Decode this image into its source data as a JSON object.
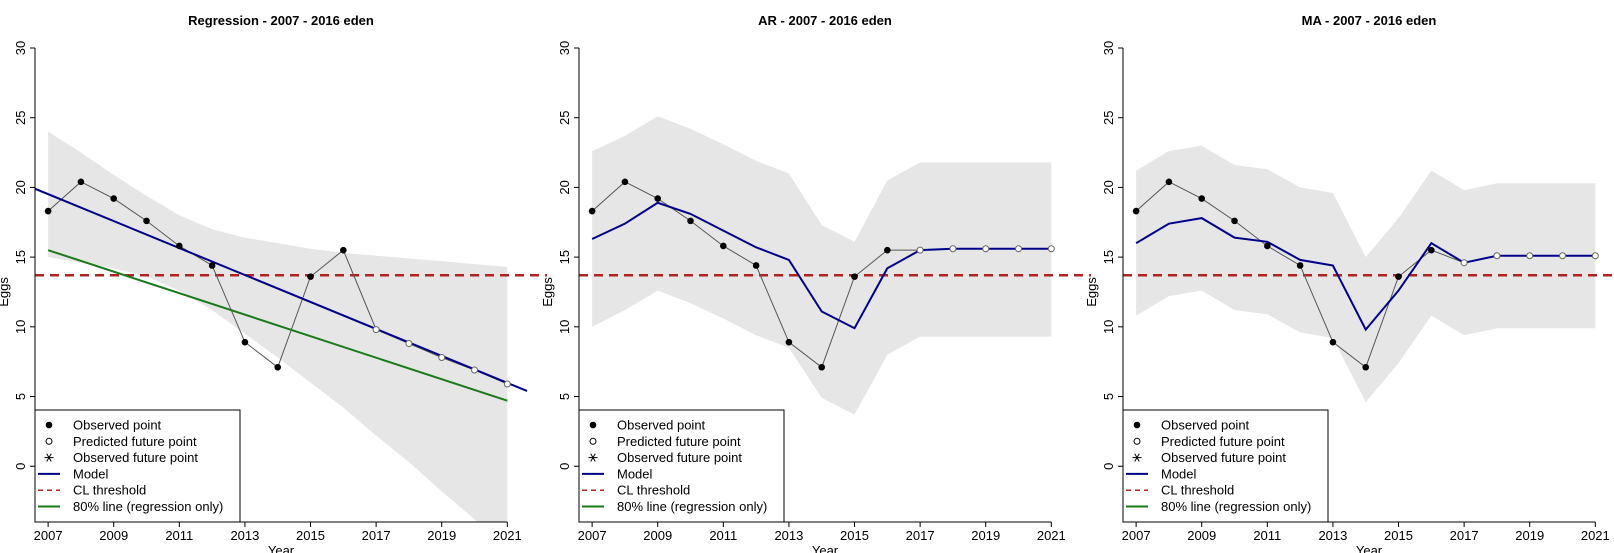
{
  "chart_data": [
    {
      "type": "line",
      "title": "Regression - 2007 - 2016 eden",
      "xlabel": "Year",
      "ylabel": "Eggs",
      "xlim": [
        2006.6,
        2021.6
      ],
      "ylim": [
        -4,
        30
      ],
      "xticks": [
        2007,
        2009,
        2011,
        2013,
        2015,
        2017,
        2019,
        2021
      ],
      "yticks": [
        0,
        5,
        10,
        15,
        20,
        25,
        30
      ],
      "threshold": 13.7,
      "observed": {
        "x": [
          2007,
          2008,
          2009,
          2010,
          2011,
          2012,
          2013,
          2014,
          2015,
          2016
        ],
        "y": [
          18.3,
          20.4,
          19.2,
          17.6,
          15.8,
          14.4,
          8.9,
          7.1,
          13.6,
          15.5
        ]
      },
      "predicted": {
        "x": [
          2017,
          2018,
          2019,
          2020,
          2021
        ],
        "y": [
          9.8,
          8.8,
          7.8,
          6.9,
          5.9
        ]
      },
      "model": {
        "x": [
          2006.5,
          2021.6
        ],
        "y": [
          20.0,
          5.4
        ]
      },
      "line80": {
        "x": [
          2007,
          2021
        ],
        "y": [
          15.5,
          4.7
        ]
      },
      "band_upper": {
        "x": [
          2007,
          2008,
          2009,
          2010,
          2011,
          2012,
          2013,
          2014,
          2015,
          2016,
          2017,
          2018,
          2019,
          2020,
          2021
        ],
        "y": [
          24.0,
          22.5,
          20.9,
          19.4,
          18.0,
          17.0,
          16.4,
          16.0,
          15.6,
          15.3,
          15.1,
          14.9,
          14.7,
          14.5,
          14.3
        ]
      },
      "band_lower": {
        "x": [
          2007,
          2008,
          2009,
          2010,
          2011,
          2012,
          2013,
          2014,
          2015,
          2016,
          2017,
          2018,
          2019,
          2020,
          2021
        ],
        "y": [
          15.0,
          14.6,
          14.2,
          13.6,
          12.6,
          11.2,
          9.5,
          7.8,
          6.0,
          4.2,
          2.2,
          0.3,
          -1.8,
          -3.8,
          -5.7
        ]
      },
      "legend": {
        "position": "bottom-left",
        "entries": [
          "Observed point",
          "Predicted future point",
          "Observed future point",
          "Model",
          "CL threshold",
          "80% line (regression only)"
        ]
      }
    },
    {
      "type": "line",
      "title": "AR - 2007 - 2016 eden",
      "xlabel": "Year",
      "ylabel": "Eggs",
      "xlim": [
        2006.6,
        2021.6
      ],
      "ylim": [
        -4,
        30
      ],
      "xticks": [
        2007,
        2009,
        2011,
        2013,
        2015,
        2017,
        2019,
        2021
      ],
      "yticks": [
        0,
        5,
        10,
        15,
        20,
        25,
        30
      ],
      "threshold": 13.7,
      "observed": {
        "x": [
          2007,
          2008,
          2009,
          2010,
          2011,
          2012,
          2013,
          2014,
          2015,
          2016
        ],
        "y": [
          18.3,
          20.4,
          19.2,
          17.6,
          15.8,
          14.4,
          8.9,
          7.1,
          13.6,
          15.5
        ]
      },
      "predicted": {
        "x": [
          2017,
          2018,
          2019,
          2020,
          2021
        ],
        "y": [
          15.5,
          15.6,
          15.6,
          15.6,
          15.6
        ]
      },
      "model": {
        "x": [
          2007,
          2008,
          2009,
          2010,
          2011,
          2012,
          2013,
          2014,
          2015,
          2016,
          2017,
          2018,
          2019,
          2020,
          2021
        ],
        "y": [
          16.3,
          17.4,
          18.9,
          18.1,
          16.9,
          15.7,
          14.8,
          11.1,
          9.9,
          14.2,
          15.5,
          15.6,
          15.6,
          15.6,
          15.6
        ]
      },
      "band_upper": {
        "x": [
          2007,
          2008,
          2009,
          2010,
          2011,
          2012,
          2013,
          2014,
          2015,
          2016,
          2017,
          2018,
          2019,
          2020,
          2021
        ],
        "y": [
          22.6,
          23.7,
          25.1,
          24.2,
          23.1,
          21.9,
          21.0,
          17.3,
          16.1,
          20.5,
          21.8,
          21.8,
          21.8,
          21.8,
          21.8
        ]
      },
      "band_lower": {
        "x": [
          2007,
          2008,
          2009,
          2010,
          2011,
          2012,
          2013,
          2014,
          2015,
          2016,
          2017,
          2018,
          2019,
          2020,
          2021
        ],
        "y": [
          10.0,
          11.2,
          12.6,
          11.7,
          10.6,
          9.4,
          8.5,
          4.9,
          3.7,
          8.0,
          9.3,
          9.3,
          9.3,
          9.3,
          9.3
        ]
      },
      "legend": {
        "position": "bottom-left",
        "entries": [
          "Observed point",
          "Predicted future point",
          "Observed future point",
          "Model",
          "CL threshold",
          "80% line (regression only)"
        ]
      }
    },
    {
      "type": "line",
      "title": "MA - 2007 - 2016 eden",
      "xlabel": "Year",
      "ylabel": "Eggs",
      "xlim": [
        2006.6,
        2021.6
      ],
      "ylim": [
        -4,
        30
      ],
      "xticks": [
        2007,
        2009,
        2011,
        2013,
        2015,
        2017,
        2019,
        2021
      ],
      "yticks": [
        0,
        5,
        10,
        15,
        20,
        25,
        30
      ],
      "threshold": 13.7,
      "observed": {
        "x": [
          2007,
          2008,
          2009,
          2010,
          2011,
          2012,
          2013,
          2014,
          2015,
          2016
        ],
        "y": [
          18.3,
          20.4,
          19.2,
          17.6,
          15.8,
          14.4,
          8.9,
          7.1,
          13.6,
          15.5
        ]
      },
      "predicted": {
        "x": [
          2017,
          2018,
          2019,
          2020,
          2021
        ],
        "y": [
          14.6,
          15.1,
          15.1,
          15.1,
          15.1
        ]
      },
      "model": {
        "x": [
          2007,
          2008,
          2009,
          2010,
          2011,
          2012,
          2013,
          2014,
          2015,
          2016,
          2017,
          2018,
          2019,
          2020,
          2021
        ],
        "y": [
          16.0,
          17.4,
          17.8,
          16.4,
          16.1,
          14.8,
          14.4,
          9.8,
          12.6,
          16.0,
          14.6,
          15.1,
          15.1,
          15.1,
          15.1
        ]
      },
      "band_upper": {
        "x": [
          2007,
          2008,
          2009,
          2010,
          2011,
          2012,
          2013,
          2014,
          2015,
          2016,
          2017,
          2018,
          2019,
          2020,
          2021
        ],
        "y": [
          21.2,
          22.6,
          23.0,
          21.6,
          21.3,
          20.0,
          19.6,
          15.0,
          17.8,
          21.2,
          19.8,
          20.3,
          20.3,
          20.3,
          20.3
        ]
      },
      "band_lower": {
        "x": [
          2007,
          2008,
          2009,
          2010,
          2011,
          2012,
          2013,
          2014,
          2015,
          2016,
          2017,
          2018,
          2019,
          2020,
          2021
        ],
        "y": [
          10.8,
          12.2,
          12.6,
          11.2,
          10.9,
          9.6,
          9.2,
          4.6,
          7.4,
          10.8,
          9.4,
          9.9,
          9.9,
          9.9,
          9.9
        ]
      },
      "legend": {
        "position": "bottom-left",
        "entries": [
          "Observed point",
          "Predicted future point",
          "Observed future point",
          "Model",
          "CL threshold",
          "80% line (regression only)"
        ]
      }
    }
  ],
  "colors": {
    "band": "#e6e6e6",
    "model": "#00008b",
    "threshold": "#b22222",
    "line80": "#1a7a1a",
    "observed": "#000000",
    "connector": "#555555"
  }
}
